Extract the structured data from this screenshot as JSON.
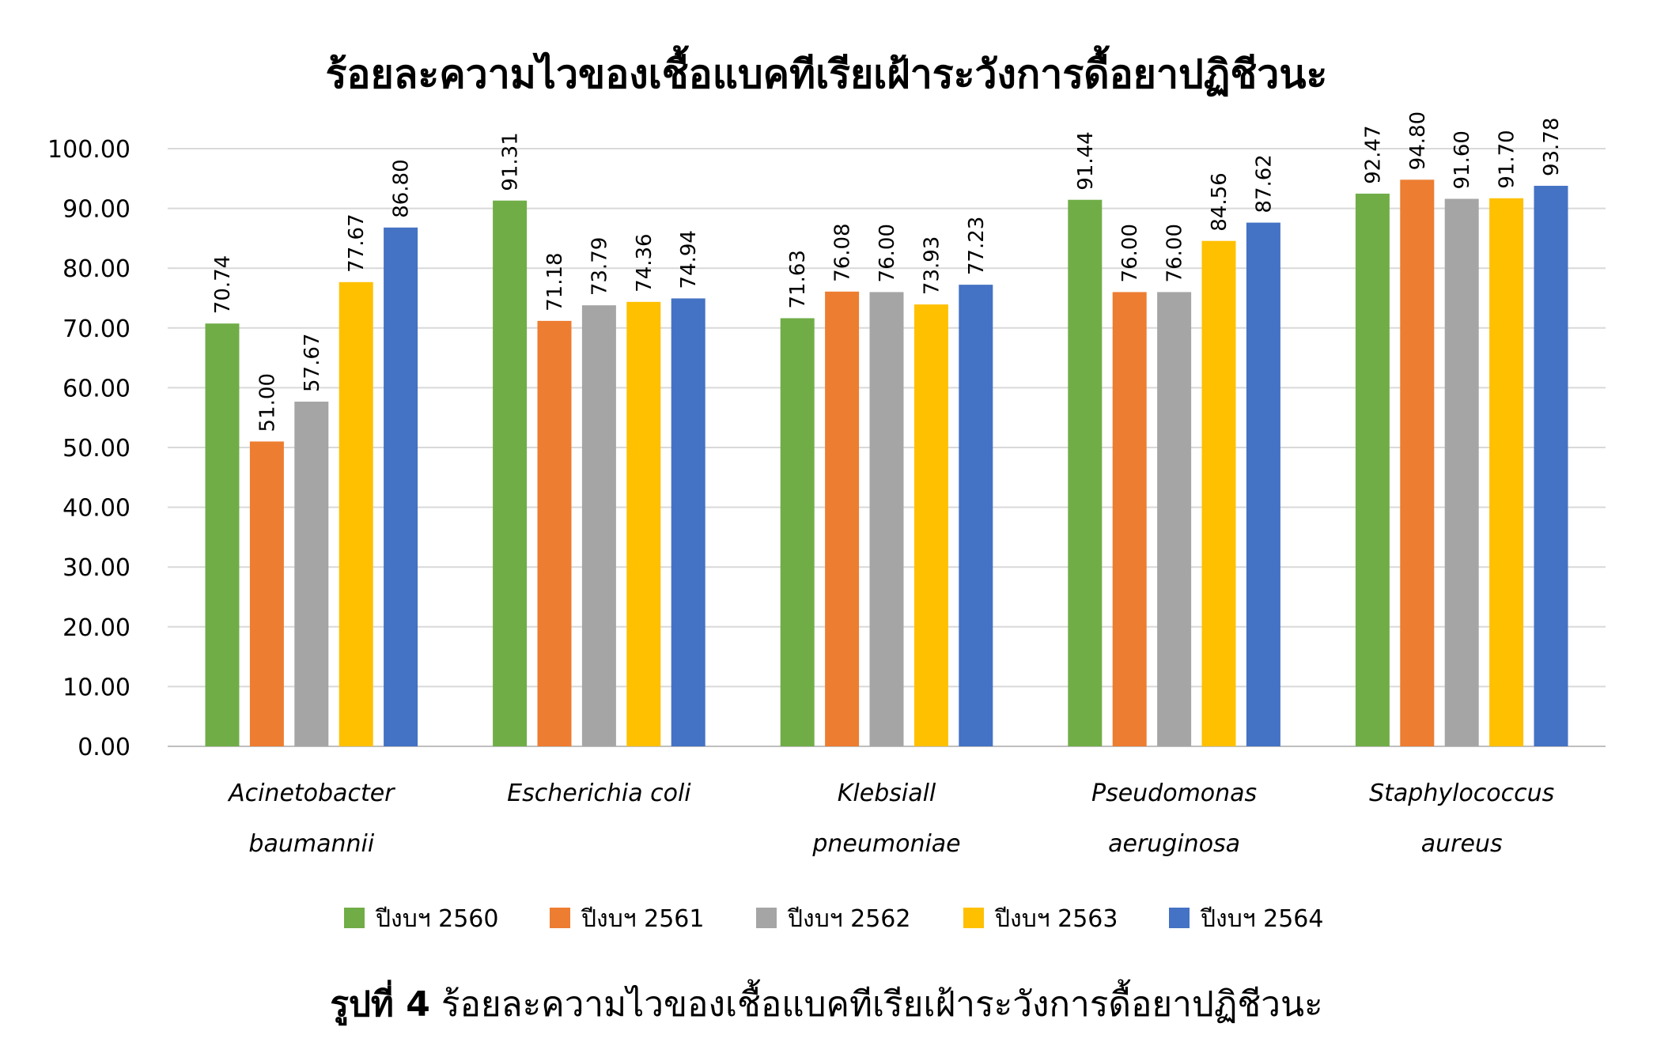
{
  "chart_data": {
    "type": "bar",
    "title": "ร้อยละความไวของเชื้อแบคทีเรียเฝ้าระวังการดื้อยาปฏิชีวนะ",
    "categories": [
      [
        "Acinetobacter",
        "baumannii"
      ],
      [
        "Escherichia coli"
      ],
      [
        "Klebsiall",
        "pneumoniae"
      ],
      [
        "Pseudomonas",
        "aeruginosa"
      ],
      [
        "Staphylococcus",
        "aureus"
      ]
    ],
    "series": [
      {
        "name": "ปีงบฯ 2560",
        "color": "#70ad47",
        "values": [
          70.74,
          91.31,
          71.63,
          91.44,
          92.47
        ],
        "labels": [
          "70.74",
          "91.31",
          "71.63",
          "91.44",
          "92.47"
        ]
      },
      {
        "name": "ปีงบฯ 2561",
        "color": "#ed7d31",
        "values": [
          51.0,
          71.18,
          76.08,
          76.0,
          94.8
        ],
        "labels": [
          "51.00",
          "71.18",
          "76.08",
          "76.00",
          "94.80"
        ]
      },
      {
        "name": "ปีงบฯ 2562",
        "color": "#a5a5a5",
        "values": [
          57.67,
          73.79,
          76.0,
          76.0,
          91.6
        ],
        "labels": [
          "57.67",
          "73.79",
          "76.00",
          "76.00",
          "91.60"
        ]
      },
      {
        "name": "ปีงบฯ 2563",
        "color": "#ffc000",
        "values": [
          77.67,
          74.36,
          73.93,
          84.56,
          91.7
        ],
        "labels": [
          "77.67",
          "74.36",
          "73.93",
          "84.56",
          "91.70"
        ]
      },
      {
        "name": "ปีงบฯ 2564",
        "color": "#4472c4",
        "values": [
          86.8,
          74.94,
          77.23,
          87.62,
          93.78
        ],
        "labels": [
          "86.80",
          "74.94",
          "77.23",
          "87.62",
          "93.78"
        ]
      }
    ],
    "ylim": [
      0,
      100
    ],
    "yticks": [
      "0.00",
      "10.00",
      "20.00",
      "30.00",
      "40.00",
      "50.00",
      "60.00",
      "70.00",
      "80.00",
      "90.00",
      "100.00"
    ],
    "grid": true,
    "legend_position": "bottom"
  },
  "caption": {
    "label": "รูปที่ 4",
    "text": "ร้อยละความไวของเชื้อแบคทีเรียเฝ้าระวังการดื้อยาปฏิชีวนะ"
  }
}
